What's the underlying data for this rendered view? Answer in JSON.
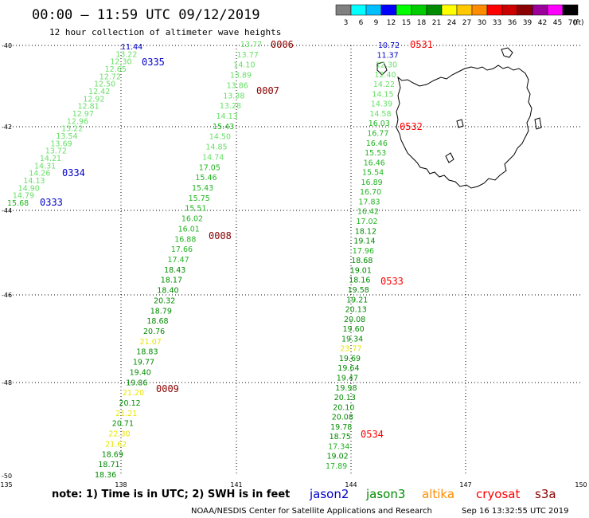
{
  "header": {
    "title": "00:00 – 11:59 UTC 09/12/2019",
    "subtitle": "12 hour collection of altimeter wave heights"
  },
  "colorbar": {
    "ticks": [
      "3",
      "6",
      "9",
      "12",
      "15",
      "18",
      "21",
      "24",
      "27",
      "30",
      "33",
      "36",
      "39",
      "42",
      "45",
      "70"
    ],
    "unit": "(ft)",
    "colors": [
      "#808080",
      "#00ffff",
      "#00bfff",
      "#0000ff",
      "#00ff00",
      "#00cd00",
      "#008b00",
      "#ffff00",
      "#ffc800",
      "#ff8c00",
      "#ff0000",
      "#cd0000",
      "#8b0000",
      "#9b009b",
      "#ff00ff",
      "#000000"
    ]
  },
  "axes": {
    "lat_labels": [
      "-40",
      "-42",
      "-44",
      "-46",
      "-48",
      "-50"
    ],
    "lon_labels": [
      "135",
      "138",
      "141",
      "144",
      "147",
      "150"
    ]
  },
  "passes": [
    {
      "label": "0335",
      "color": "#0000cc"
    },
    {
      "label": "0334",
      "color": "#0000cc"
    },
    {
      "label": "0333",
      "color": "#0000cc"
    },
    {
      "label": "0006",
      "color": "#8b0000"
    },
    {
      "label": "0007",
      "color": "#8b0000"
    },
    {
      "label": "0008",
      "color": "#8b0000"
    },
    {
      "label": "0009",
      "color": "#8b0000"
    },
    {
      "label": "0531",
      "color": "#ff0000"
    },
    {
      "label": "0532",
      "color": "#ff0000"
    },
    {
      "label": "0533",
      "color": "#ff0000"
    },
    {
      "label": "0534",
      "color": "#ff0000"
    }
  ],
  "tracks": [
    {
      "name": "track-west",
      "values": [
        {
          "v": "11.44",
          "c": "#0000cc"
        },
        {
          "v": "13.22",
          "c": "#66e066"
        },
        {
          "v": "12.30",
          "c": "#66e066"
        },
        {
          "v": "12.65",
          "c": "#66e066"
        },
        {
          "v": "12.72",
          "c": "#66e066"
        },
        {
          "v": "12.50",
          "c": "#66e066"
        },
        {
          "v": "12.42",
          "c": "#66e066"
        },
        {
          "v": "12.92",
          "c": "#66e066"
        },
        {
          "v": "12.81",
          "c": "#66e066"
        },
        {
          "v": "12.97",
          "c": "#66e066"
        },
        {
          "v": "12.96",
          "c": "#66e066"
        },
        {
          "v": "13.22",
          "c": "#66e066"
        },
        {
          "v": "13.54",
          "c": "#66e066"
        },
        {
          "v": "13.69",
          "c": "#66e066"
        },
        {
          "v": "13.72",
          "c": "#66e066"
        },
        {
          "v": "14.21",
          "c": "#66e066"
        },
        {
          "v": "14.31",
          "c": "#66e066"
        },
        {
          "v": "14.26",
          "c": "#66e066"
        },
        {
          "v": "14.13",
          "c": "#66e066"
        },
        {
          "v": "14.90",
          "c": "#66e066"
        },
        {
          "v": "14.79",
          "c": "#66e066"
        },
        {
          "v": "15.68",
          "c": "#22b422"
        }
      ]
    },
    {
      "name": "track-middle",
      "values": [
        {
          "v": "13.77",
          "c": "#66e066"
        },
        {
          "v": "13.77",
          "c": "#66e066"
        },
        {
          "v": "14.10",
          "c": "#66e066"
        },
        {
          "v": "13.89",
          "c": "#66e066"
        },
        {
          "v": "13.86",
          "c": "#66e066"
        },
        {
          "v": "13.38",
          "c": "#66e066"
        },
        {
          "v": "13.28",
          "c": "#66e066"
        },
        {
          "v": "14.13",
          "c": "#66e066"
        },
        {
          "v": "15.43",
          "c": "#22b422"
        },
        {
          "v": "14.50",
          "c": "#66e066"
        },
        {
          "v": "14.85",
          "c": "#66e066"
        },
        {
          "v": "14.74",
          "c": "#66e066"
        },
        {
          "v": "17.05",
          "c": "#22b422"
        },
        {
          "v": "15.46",
          "c": "#22b422"
        },
        {
          "v": "15.43",
          "c": "#22b422"
        },
        {
          "v": "15.75",
          "c": "#22b422"
        },
        {
          "v": "15.51",
          "c": "#22b422"
        },
        {
          "v": "16.02",
          "c": "#22b422"
        },
        {
          "v": "16.01",
          "c": "#22b422"
        },
        {
          "v": "16.88",
          "c": "#22b422"
        },
        {
          "v": "17.66",
          "c": "#22b422"
        },
        {
          "v": "17.47",
          "c": "#22b422"
        },
        {
          "v": "18.43",
          "c": "#008b00"
        },
        {
          "v": "18.17",
          "c": "#008b00"
        },
        {
          "v": "18.40",
          "c": "#008b00"
        },
        {
          "v": "20.32",
          "c": "#008b00"
        },
        {
          "v": "18.79",
          "c": "#008b00"
        },
        {
          "v": "18.68",
          "c": "#008b00"
        },
        {
          "v": "20.76",
          "c": "#008b00"
        },
        {
          "v": "21.07",
          "c": "#e6e600"
        },
        {
          "v": "18.83",
          "c": "#008b00"
        },
        {
          "v": "19.77",
          "c": "#008b00"
        },
        {
          "v": "19.40",
          "c": "#008b00"
        },
        {
          "v": "19.86",
          "c": "#008b00"
        },
        {
          "v": "21.20",
          "c": "#e6e600"
        },
        {
          "v": "20.12",
          "c": "#008b00"
        },
        {
          "v": "21.21",
          "c": "#e6e600"
        },
        {
          "v": "20.71",
          "c": "#008b00"
        },
        {
          "v": "22.30",
          "c": "#e6e600"
        },
        {
          "v": "21.62",
          "c": "#e6e600"
        },
        {
          "v": "18.69",
          "c": "#008b00"
        },
        {
          "v": "18.71",
          "c": "#008b00"
        },
        {
          "v": "18.36",
          "c": "#008b00"
        }
      ]
    },
    {
      "name": "track-east",
      "values": [
        {
          "v": "10.72",
          "c": "#0000cc"
        },
        {
          "v": "11.37",
          "c": "#0000cc"
        },
        {
          "v": "12.30",
          "c": "#66e066"
        },
        {
          "v": "12.40",
          "c": "#66e066"
        },
        {
          "v": "14.22",
          "c": "#66e066"
        },
        {
          "v": "14.15",
          "c": "#66e066"
        },
        {
          "v": "14.39",
          "c": "#66e066"
        },
        {
          "v": "14.58",
          "c": "#66e066"
        },
        {
          "v": "16.03",
          "c": "#22b422"
        },
        {
          "v": "16.77",
          "c": "#22b422"
        },
        {
          "v": "16.46",
          "c": "#22b422"
        },
        {
          "v": "15.53",
          "c": "#22b422"
        },
        {
          "v": "16.46",
          "c": "#22b422"
        },
        {
          "v": "15.54",
          "c": "#22b422"
        },
        {
          "v": "16.89",
          "c": "#22b422"
        },
        {
          "v": "16.70",
          "c": "#22b422"
        },
        {
          "v": "17.83",
          "c": "#22b422"
        },
        {
          "v": "16.42",
          "c": "#22b422"
        },
        {
          "v": "17.02",
          "c": "#22b422"
        },
        {
          "v": "18.12",
          "c": "#008b00"
        },
        {
          "v": "19.14",
          "c": "#008b00"
        },
        {
          "v": "17.96",
          "c": "#22b422"
        },
        {
          "v": "18.68",
          "c": "#008b00"
        },
        {
          "v": "19.01",
          "c": "#008b00"
        },
        {
          "v": "18.16",
          "c": "#008b00"
        },
        {
          "v": "19.58",
          "c": "#008b00"
        },
        {
          "v": "19.21",
          "c": "#008b00"
        },
        {
          "v": "20.13",
          "c": "#008b00"
        },
        {
          "v": "20.08",
          "c": "#008b00"
        },
        {
          "v": "19.60",
          "c": "#008b00"
        },
        {
          "v": "19.34",
          "c": "#008b00"
        },
        {
          "v": "23.77",
          "c": "#e6e600"
        },
        {
          "v": "19.69",
          "c": "#008b00"
        },
        {
          "v": "19.64",
          "c": "#008b00"
        },
        {
          "v": "19.47",
          "c": "#008b00"
        },
        {
          "v": "19.98",
          "c": "#008b00"
        },
        {
          "v": "20.13",
          "c": "#008b00"
        },
        {
          "v": "20.10",
          "c": "#008b00"
        },
        {
          "v": "20.08",
          "c": "#008b00"
        },
        {
          "v": "19.78",
          "c": "#008b00"
        },
        {
          "v": "18.75",
          "c": "#008b00"
        },
        {
          "v": "17.34",
          "c": "#22b422"
        },
        {
          "v": "19.02",
          "c": "#008b00"
        },
        {
          "v": "17.89",
          "c": "#22b422"
        }
      ]
    }
  ],
  "footer": {
    "note": "note: 1) Time is in UTC; 2) SWH is in feet",
    "credit": "NOAA/NESDIS Center for Satellite Applications and Research",
    "timestamp": "Sep 16 13:32:55 UTC 2019",
    "legend": [
      {
        "label": "jason2",
        "color": "#0000cc"
      },
      {
        "label": "jason3",
        "color": "#008b00"
      },
      {
        "label": "altika",
        "color": "#ff8c00"
      },
      {
        "label": "cryosat",
        "color": "#ff0000"
      },
      {
        "label": "s3a",
        "color": "#8b0000"
      }
    ]
  }
}
